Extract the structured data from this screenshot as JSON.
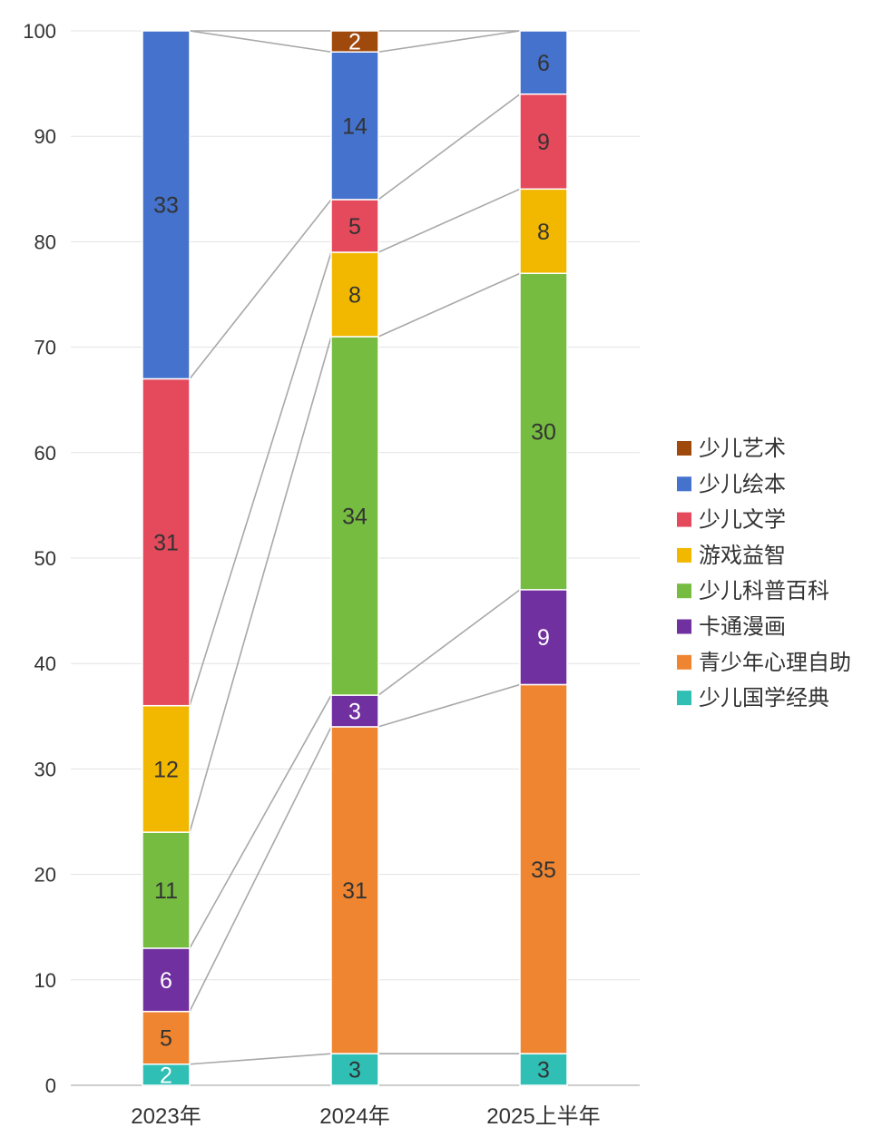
{
  "chart_data": {
    "type": "bar",
    "stacked": true,
    "categories": [
      "2023年",
      "2024年",
      "2025上半年"
    ],
    "ylim": [
      0,
      100
    ],
    "yticks": [
      0,
      10,
      20,
      30,
      40,
      50,
      60,
      70,
      80,
      90,
      100
    ],
    "grid": true,
    "legend_position": "right",
    "series": [
      {
        "name": "少儿国学经典",
        "color": "#2fbfb5",
        "values": [
          2,
          3,
          3
        ]
      },
      {
        "name": "青少年心理自助",
        "color": "#ef8530",
        "values": [
          5,
          31,
          35
        ]
      },
      {
        "name": "卡通漫画",
        "color": "#7030a0",
        "values": [
          6,
          3,
          9
        ]
      },
      {
        "name": "少儿科普百科",
        "color": "#76bc41",
        "values": [
          11,
          34,
          30
        ]
      },
      {
        "name": "游戏益智",
        "color": "#f2b800",
        "values": [
          12,
          8,
          8
        ]
      },
      {
        "name": "少儿文学",
        "color": "#e4495c",
        "values": [
          31,
          5,
          9
        ]
      },
      {
        "name": "少儿绘本",
        "color": "#4472cc",
        "values": [
          33,
          14,
          6
        ]
      },
      {
        "name": "少儿艺术",
        "color": "#a0490c",
        "values": [
          0,
          2,
          0
        ]
      }
    ],
    "legend_order": [
      "少儿艺术",
      "少儿绘本",
      "少儿文学",
      "游戏益智",
      "少儿科普百科",
      "卡通漫画",
      "青少年心理自助",
      "少儿国学经典"
    ],
    "label_colors": {
      "dark": "#333333",
      "light": "#ffffff"
    }
  }
}
